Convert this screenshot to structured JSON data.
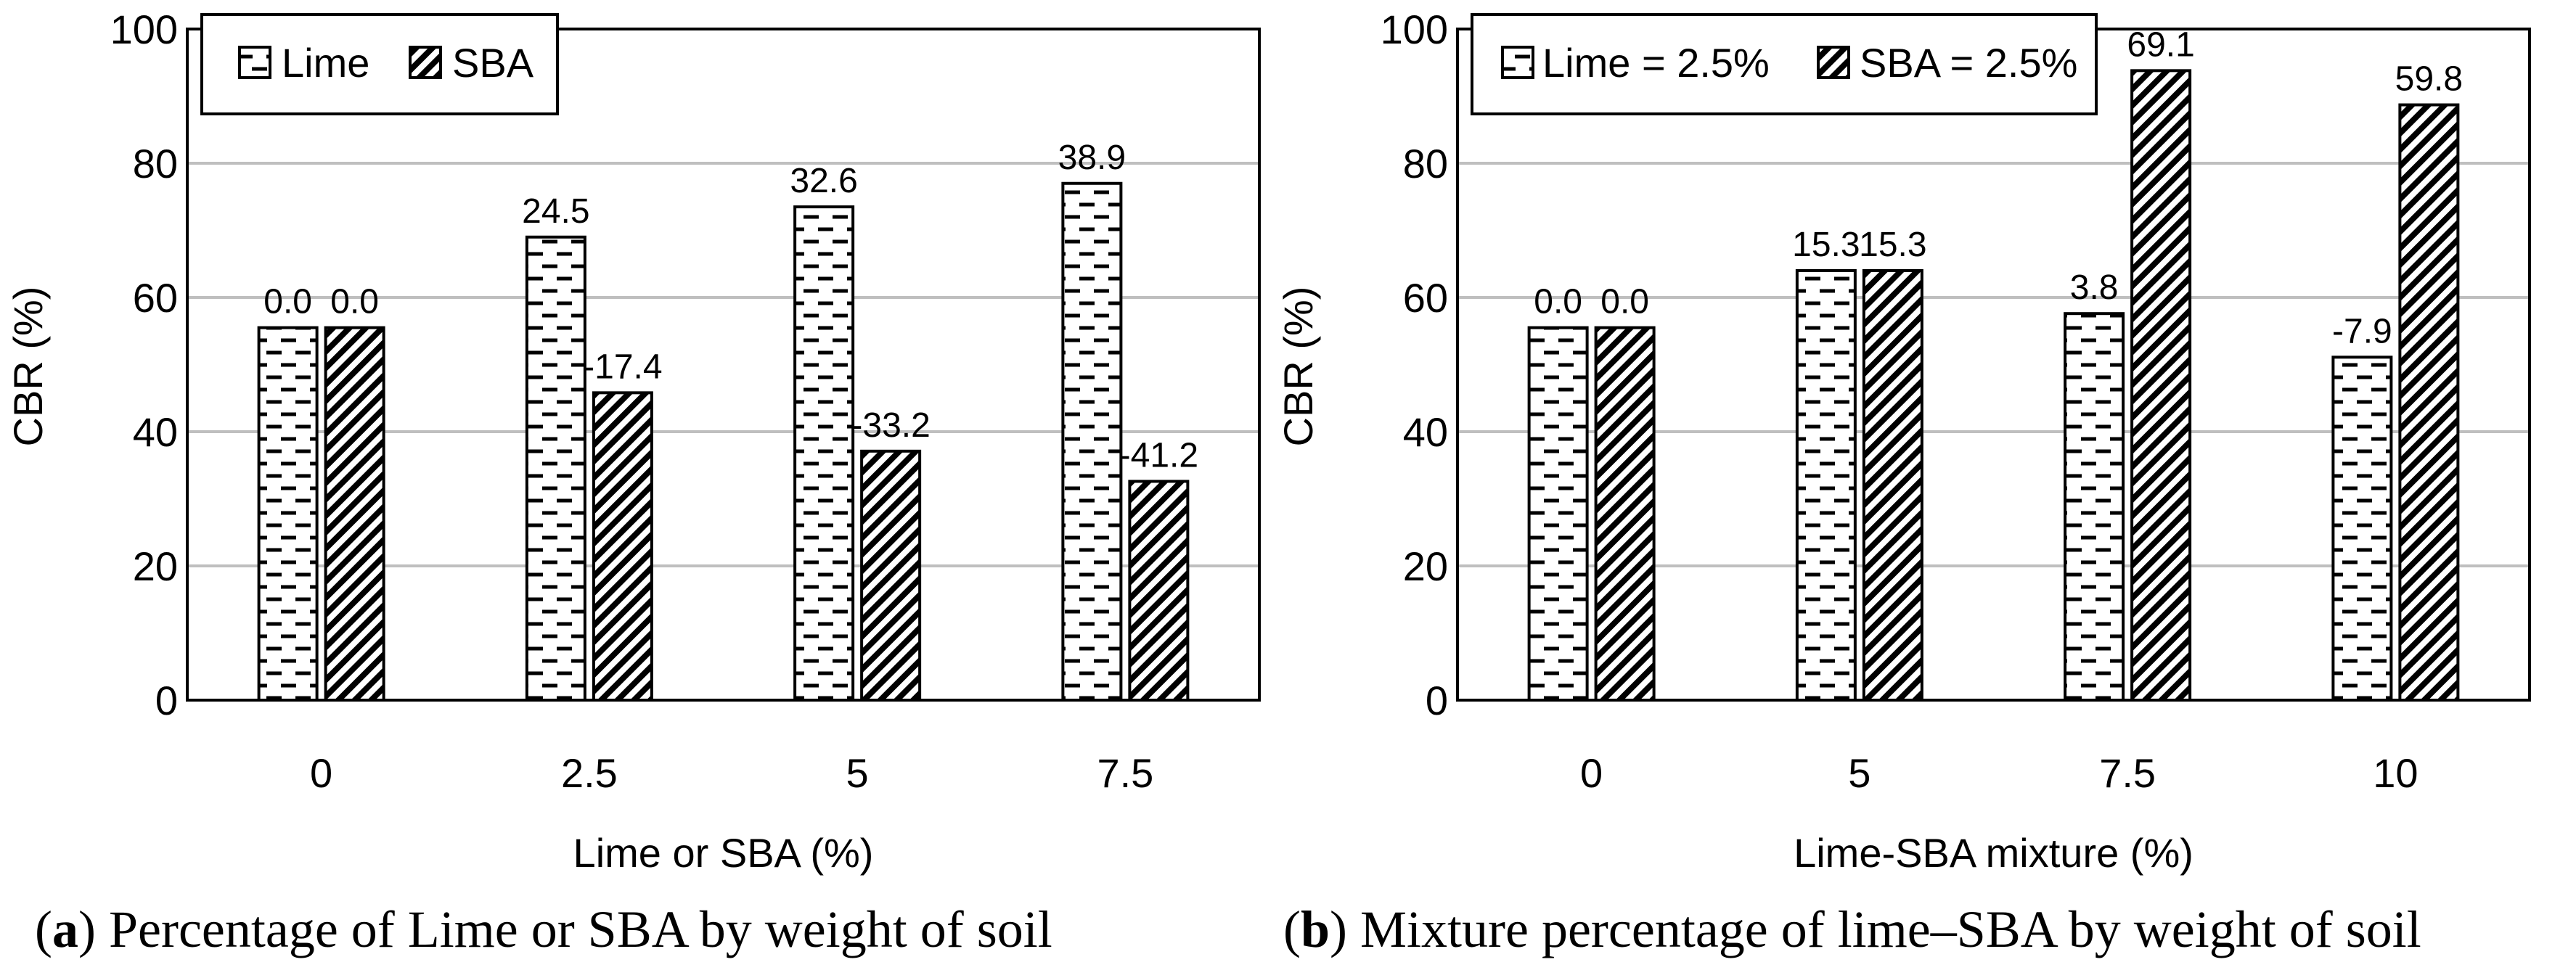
{
  "chart_data": [
    {
      "type": "bar",
      "ylabel": "CBR (%)",
      "xlabel": "Lime or SBA (%)",
      "ylim": [
        0,
        100
      ],
      "yticks": [
        "0",
        "20",
        "40",
        "60",
        "80",
        "100"
      ],
      "categories": [
        "0",
        "2.5",
        "5",
        "7.5"
      ],
      "grid": true,
      "legend_position": "top-left",
      "series": [
        {
          "name": "Lime",
          "pattern": "dashes",
          "values": [
            55.5,
            69,
            73.5,
            77
          ],
          "labels": [
            "0.0",
            "24.5",
            "32.6",
            "38.9"
          ]
        },
        {
          "name": "SBA",
          "pattern": "diagonal-hatch",
          "values": [
            55.5,
            45.8,
            37.1,
            32.6
          ],
          "labels": [
            "0.0",
            "-17.4",
            "-33.2",
            "-41.2"
          ]
        }
      ],
      "caption": {
        "letter": "a",
        "text": "Percentage of Lime or SBA by weight of soil"
      }
    },
    {
      "type": "bar",
      "ylabel": "CBR (%)",
      "xlabel": "Lime-SBA mixture (%)",
      "ylim": [
        0,
        100
      ],
      "yticks": [
        "0",
        "20",
        "40",
        "60",
        "80",
        "100"
      ],
      "categories": [
        "0",
        "5",
        "7.5",
        "10"
      ],
      "grid": true,
      "legend_position": "top-left",
      "series": [
        {
          "name": "Lime = 2.5%",
          "pattern": "dashes",
          "values": [
            55.5,
            64,
            57.6,
            51.1
          ],
          "labels": [
            "0.0",
            "15.3",
            "3.8",
            "-7.9"
          ]
        },
        {
          "name": "SBA = 2.5%",
          "pattern": "diagonal-hatch",
          "values": [
            55.5,
            64,
            93.8,
            88.7
          ],
          "labels": [
            "0.0",
            "15.3",
            "69.1",
            "59.8"
          ]
        }
      ],
      "caption": {
        "letter": "b",
        "text": "Mixture percentage of lime–SBA by weight of soil"
      }
    }
  ],
  "colors": {
    "axis": "#000000",
    "grid": "#bfbfbf",
    "bar_fill": "#ffffff"
  }
}
